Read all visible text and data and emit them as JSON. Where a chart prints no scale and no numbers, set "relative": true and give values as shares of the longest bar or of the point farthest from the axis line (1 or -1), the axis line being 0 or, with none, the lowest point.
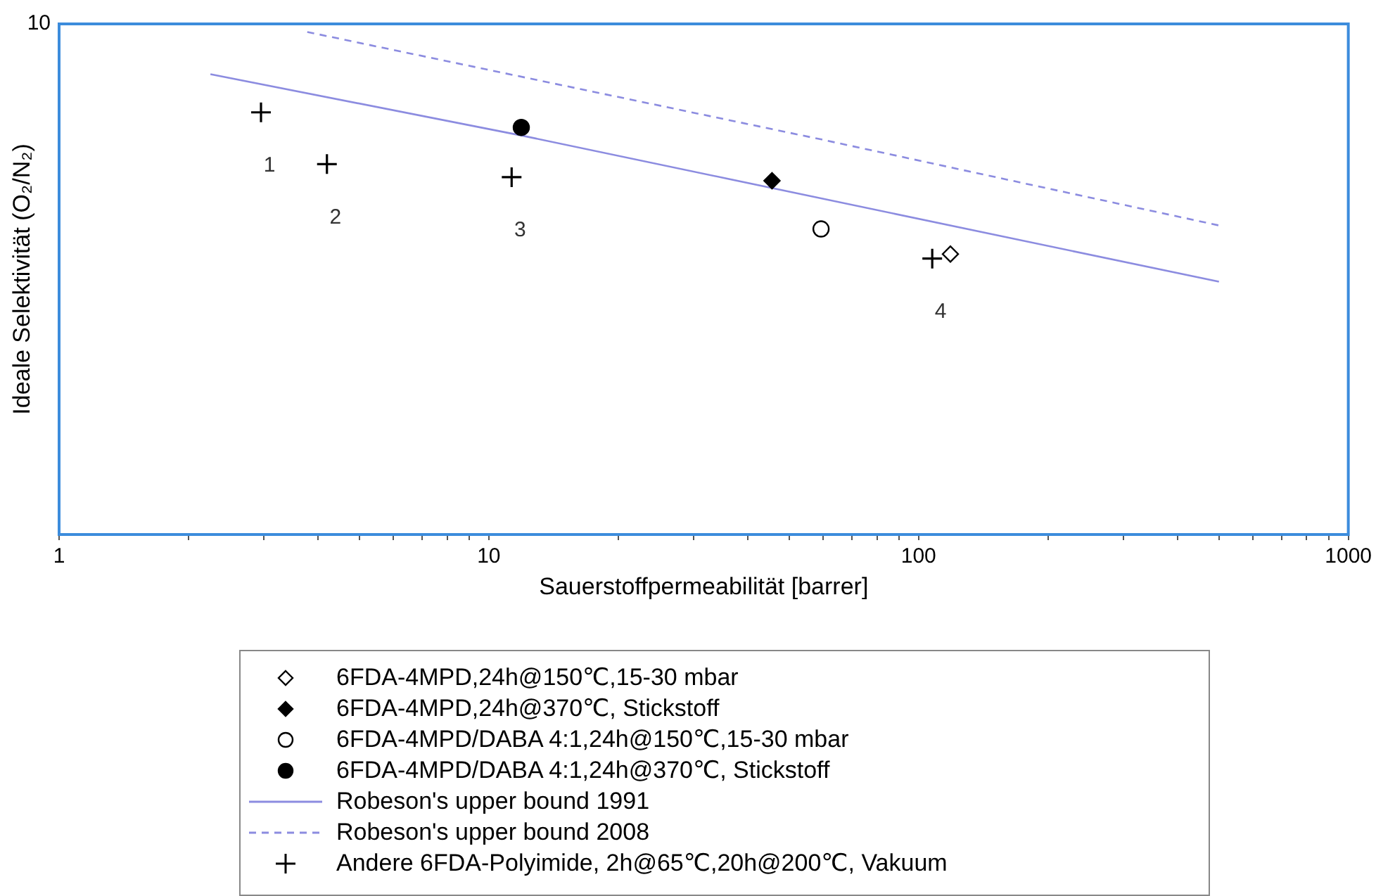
{
  "chart_data": {
    "type": "scatter",
    "xlabel": "Sauerstoffpermeabilität [barrer]",
    "ylabel": "Ideale Selektivität (O₂/N₂)",
    "log": "x",
    "relative": true,
    "xlim": [
      1,
      1000
    ],
    "xticks": [
      1,
      {
        "value": 2,
        "label": null
      },
      {
        "value": 3,
        "label": null
      },
      {
        "value": 4,
        "label": null
      },
      {
        "value": 5,
        "label": null
      },
      {
        "value": 6,
        "label": null
      },
      {
        "value": 7,
        "label": null
      },
      {
        "value": 8,
        "label": null
      },
      {
        "value": 9,
        "label": null
      },
      10,
      {
        "value": 20,
        "label": null
      },
      {
        "value": 30,
        "label": null
      },
      {
        "value": 40,
        "label": null
      },
      {
        "value": 50,
        "label": null
      },
      {
        "value": 60,
        "label": null
      },
      {
        "value": 70,
        "label": null
      },
      {
        "value": 80,
        "label": null
      },
      {
        "value": 90,
        "label": null
      },
      100,
      {
        "value": 200,
        "label": null
      },
      {
        "value": 300,
        "label": null
      },
      {
        "value": 400,
        "label": null
      },
      {
        "value": 500,
        "label": null
      },
      {
        "value": 600,
        "label": null
      },
      {
        "value": 700,
        "label": null
      },
      {
        "value": 800,
        "label": null
      },
      {
        "value": 900,
        "label": null
      },
      1000
    ],
    "legend": "bottom",
    "series": [
      {
        "name": "6FDA-4MPD,24h@150℃,15-30 mbar",
        "marker": "diamond",
        "color": "#ffffff",
        "x": [
          118.6
        ],
        "values": [
          0.558
        ]
      },
      {
        "name": "6FDA-4MPD,24h@370℃, Stickstoff",
        "marker": "diamond",
        "color": "#000000",
        "x": [
          45.6
        ],
        "values": [
          0.704
        ]
      },
      {
        "name": "6FDA-4MPD/DABA 4:1,24h@150℃,15-30 mbar",
        "marker": "circle",
        "color": "#ffffff",
        "x": [
          59.3
        ],
        "values": [
          0.608
        ]
      },
      {
        "name": "6FDA-4MPD/DABA 4:1,24h@370℃, Stickstoff",
        "marker": "circle",
        "color": "#000000",
        "x": [
          11.9
        ],
        "values": [
          0.81
        ]
      },
      {
        "name": "Robeson's upper bound 1991",
        "type": "line",
        "line_style": "solid",
        "color": "#8c8ce0",
        "x": [
          2.25,
          11.9,
          500
        ],
        "values": [
          0.916,
          0.794,
          0.503
        ]
      },
      {
        "name": "Robeson's upper bound 2008",
        "type": "line",
        "line_style": "dashed",
        "color": "#8c8ce0",
        "x": [
          3.78,
          59.5,
          500
        ],
        "values": [
          1.0,
          0.786,
          0.615
        ]
      },
      {
        "name": "Andere 6FDA-Polyimide, 2h@65℃,20h@200℃, Vakuum",
        "marker": "cross",
        "color": "#000000",
        "x": [
          2.95,
          4.2,
          11.3,
          107.6
        ],
        "values": [
          0.84,
          0.737,
          0.711,
          0.549
        ]
      }
    ],
    "annotations": [
      "10",
      "1",
      "2",
      "3",
      "4"
    ]
  }
}
